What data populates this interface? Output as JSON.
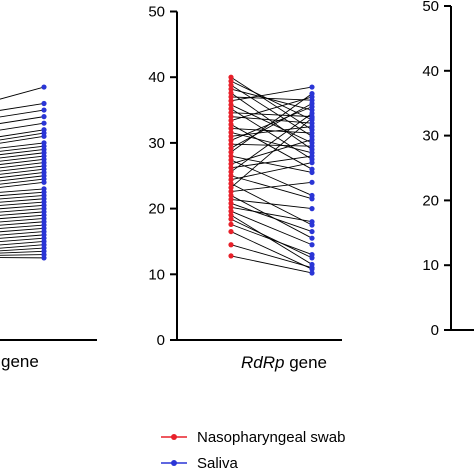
{
  "colors": {
    "nasopharyngeal": "#e8202a",
    "saliva": "#2a35d6",
    "line": "#000000",
    "axis": "#000000"
  },
  "chart_data": [
    {
      "type": "scatter",
      "style": "paired-line",
      "xlabel_left": "",
      "xlabel_right": "gene",
      "ylim": [
        0,
        50
      ],
      "ticks": [],
      "note": "left panel, partially cropped",
      "series": [
        {
          "name": "Nasopharyngeal swab",
          "values": []
        },
        {
          "name": "Saliva",
          "values": [
            38.5,
            36,
            35,
            34,
            33,
            32,
            31.5,
            31,
            30,
            29.5,
            29,
            28.5,
            28,
            27.5,
            27,
            26.5,
            26,
            25.5,
            25,
            24.5,
            24,
            23,
            22.5,
            22,
            21.5,
            21,
            20.5,
            20,
            19.5,
            19,
            18.5,
            18,
            17.5,
            17,
            16.5,
            16,
            15.5,
            15,
            14.5,
            14,
            13.5,
            13,
            12.5
          ]
        }
      ],
      "paired_left_y": [
        35,
        34,
        33,
        32,
        31,
        30,
        29.5,
        29,
        28.5,
        28,
        27.5,
        27,
        26.5,
        26,
        25.5,
        25,
        24.5,
        24,
        23.5,
        23,
        22.5,
        22,
        21.5,
        21,
        20.5,
        20,
        19.5,
        19,
        18.5,
        18,
        17.5,
        17,
        16.5,
        16,
        15.5,
        15,
        14.5,
        14,
        13.5,
        13.2,
        13,
        12.8,
        12.6
      ]
    },
    {
      "type": "scatter",
      "style": "paired-line",
      "xlabel_italic": "RdRp",
      "xlabel_rest": " gene",
      "ylim": [
        0,
        50
      ],
      "ticks": [
        "0",
        "10",
        "20",
        "30",
        "40",
        "50"
      ],
      "series": [
        {
          "name": "Nasopharyngeal swab",
          "values": [
            40,
            39.4,
            38.8,
            38.2,
            37.6,
            37,
            36.4,
            35.8,
            35.2,
            34.6,
            34,
            33.4,
            32.8,
            32.2,
            31.6,
            31,
            30.4,
            29.8,
            29.2,
            28.6,
            28,
            27.4,
            26.8,
            26.2,
            25.6,
            25,
            24.4,
            23.8,
            23.2,
            22.6,
            22,
            21.4,
            20.8,
            20.2,
            19.6,
            19,
            18.4,
            17.6,
            16.5,
            14.5,
            12.8
          ]
        },
        {
          "name": "Saliva",
          "values": [
            32,
            33.5,
            31,
            35,
            29,
            36.5,
            38.5,
            30,
            27.5,
            34,
            33,
            37,
            26,
            31.5,
            28.5,
            32.5,
            35.5,
            29.5,
            36,
            37.5,
            25.5,
            22,
            30.5,
            28,
            34.5,
            21.5,
            27,
            17.5,
            33.8,
            24,
            15.5,
            20,
            16.5,
            18,
            14.5,
            11.5,
            12.5,
            13,
            10.8,
            11,
            10.2
          ]
        }
      ]
    },
    {
      "type": "scatter",
      "note": "right panel, cropped",
      "ylim": [
        0,
        50
      ],
      "ticks": [
        "0",
        "10",
        "20",
        "30",
        "40",
        "50"
      ]
    }
  ],
  "legend": {
    "items": [
      {
        "label": "Nasopharyngeal swab",
        "color_key": "nasopharyngeal"
      },
      {
        "label": "Saliva",
        "color_key": "saliva"
      }
    ]
  }
}
